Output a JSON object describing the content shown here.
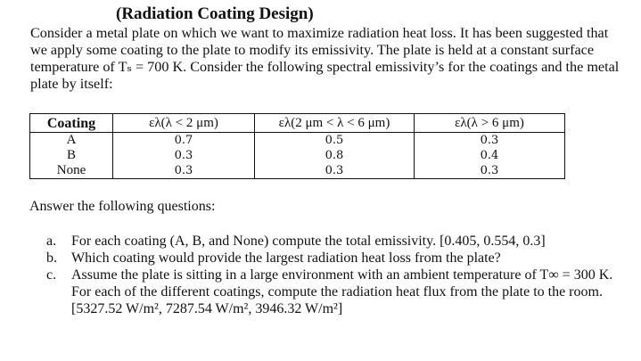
{
  "title": "(Radiation Coating Design)",
  "intro": "Consider a metal plate on which we want to maximize radiation heat loss. It has been suggested that we apply some coating to the plate to modify its emissivity. The plate is held at a constant surface temperature of Tₛ = 700 K. Consider the following spectral emissivity’s for the coatings and the metal plate by itself:",
  "table": {
    "headers": [
      "Coating",
      "ελ(λ < 2 μm)",
      "ελ(2 μm < λ < 6 μm)",
      "ελ(λ > 6 μm)"
    ],
    "rows": [
      [
        "A",
        "0.7",
        "0.5",
        "0.3"
      ],
      [
        "B",
        "0.3",
        "0.8",
        "0.4"
      ],
      [
        "None",
        "0.3",
        "0.3",
        "0.3"
      ]
    ]
  },
  "answer_prompt": "Answer the following questions:",
  "questions": [
    {
      "marker": "a.",
      "text": "For each coating (A, B, and None) compute the total emissivity. [0.405, 0.554, 0.3]"
    },
    {
      "marker": "b.",
      "text": "Which coating would provide the largest radiation heat loss from the plate?"
    },
    {
      "marker": "c.",
      "text": "Assume the plate is sitting in a large environment with an ambient temperature of T∞ = 300 K. For each of the different coatings, compute the radiation heat flux from the plate to the room. [5327.52 W/m², 7287.54 W/m², 3946.32 W/m²]"
    }
  ]
}
